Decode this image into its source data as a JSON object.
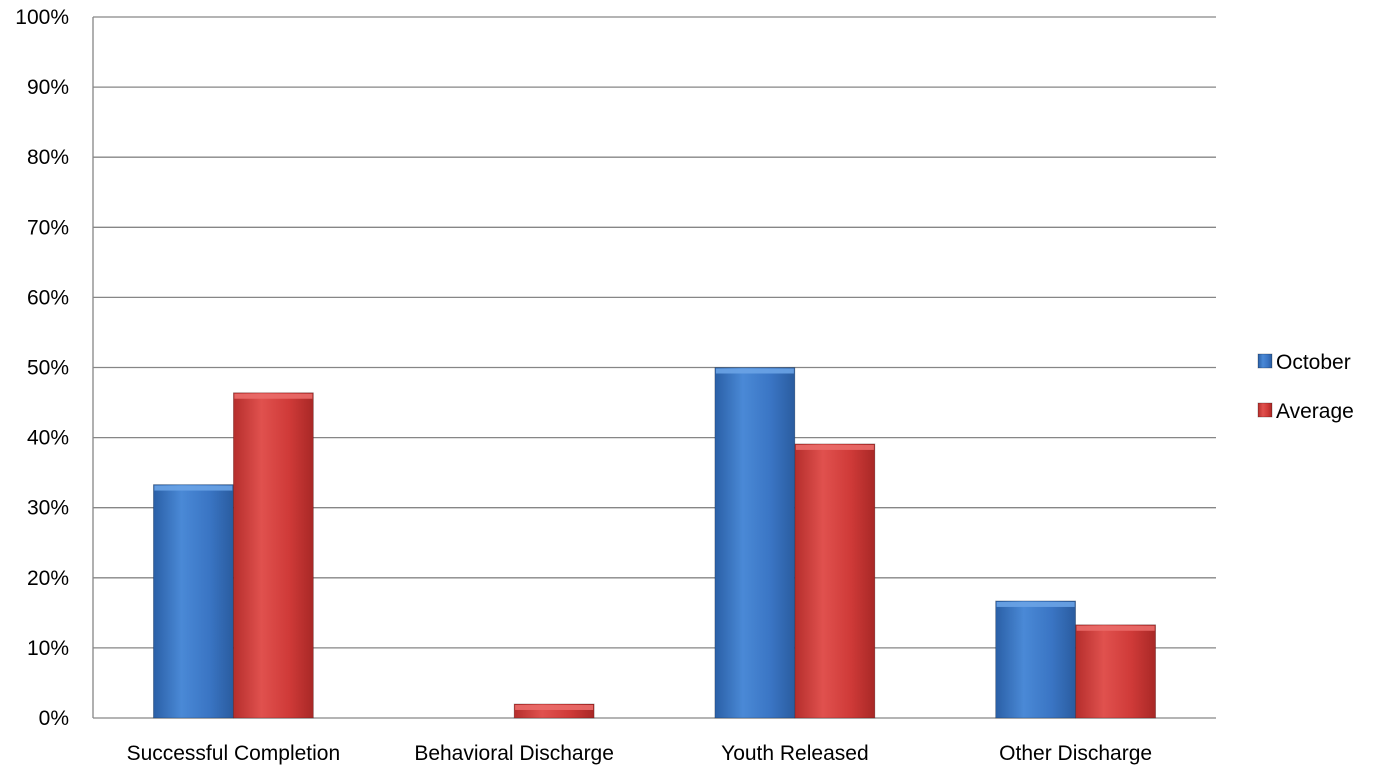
{
  "chart_data": {
    "type": "bar",
    "categories": [
      "Successful Completion",
      "Behavioral Discharge",
      "Youth Released",
      "Other Discharge"
    ],
    "series": [
      {
        "name": "October",
        "values": [
          33.3,
          0,
          50.0,
          16.7
        ],
        "color": "#3a75c4"
      },
      {
        "name": "Average",
        "values": [
          46.4,
          2.0,
          39.1,
          13.3
        ],
        "color": "#cf3a38"
      }
    ],
    "ylim": [
      0,
      100
    ],
    "yticks": [
      0,
      10,
      20,
      30,
      40,
      50,
      60,
      70,
      80,
      90,
      100
    ],
    "ytick_suffix": "%",
    "grid": true,
    "legend_position": "right"
  }
}
